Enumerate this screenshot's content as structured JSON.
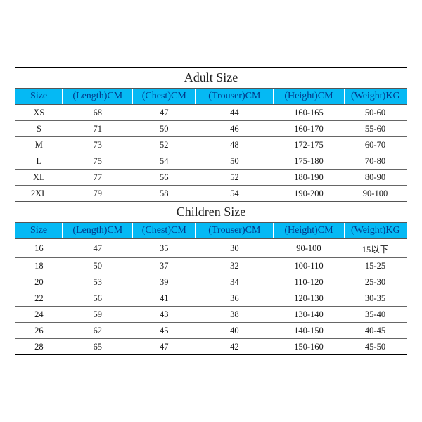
{
  "adult": {
    "title": "Adult Size",
    "columns": [
      "Size",
      "(Length)CM",
      "(Chest)CM",
      "(Trouser)CM",
      "(Height)CM",
      "(Weight)KG"
    ],
    "rows": [
      [
        "XS",
        "68",
        "47",
        "44",
        "160-165",
        "50-60"
      ],
      [
        "S",
        "71",
        "50",
        "46",
        "160-170",
        "55-60"
      ],
      [
        "M",
        "73",
        "52",
        "48",
        "172-175",
        "60-70"
      ],
      [
        "L",
        "75",
        "54",
        "50",
        "175-180",
        "70-80"
      ],
      [
        "XL",
        "77",
        "56",
        "52",
        "180-190",
        "80-90"
      ],
      [
        "2XL",
        "79",
        "58",
        "54",
        "190-200",
        "90-100"
      ]
    ]
  },
  "children": {
    "title": "Children Size",
    "columns": [
      "Size",
      "(Length)CM",
      "(Chest)CM",
      "(Trouser)CM",
      "(Height)CM",
      "(Weight)KG"
    ],
    "rows": [
      [
        "16",
        "47",
        "35",
        "30",
        "90-100",
        "15以下"
      ],
      [
        "18",
        "50",
        "37",
        "32",
        "100-110",
        "15-25"
      ],
      [
        "20",
        "53",
        "39",
        "34",
        "110-120",
        "25-30"
      ],
      [
        "22",
        "56",
        "41",
        "36",
        "120-130",
        "30-35"
      ],
      [
        "24",
        "59",
        "43",
        "38",
        "130-140",
        "35-40"
      ],
      [
        "26",
        "62",
        "45",
        "40",
        "140-150",
        "40-45"
      ],
      [
        "28",
        "65",
        "47",
        "42",
        "150-160",
        "45-50"
      ]
    ]
  },
  "styling": {
    "header_bg": "#05b9f4",
    "header_text": "#023a8a",
    "title_fontsize": 18,
    "header_fontsize": 14,
    "cell_fontsize": 12.5,
    "border_color": "#555555",
    "col_widths_pct": [
      12,
      18,
      16,
      20,
      18,
      16
    ],
    "font_family": "Times New Roman"
  }
}
